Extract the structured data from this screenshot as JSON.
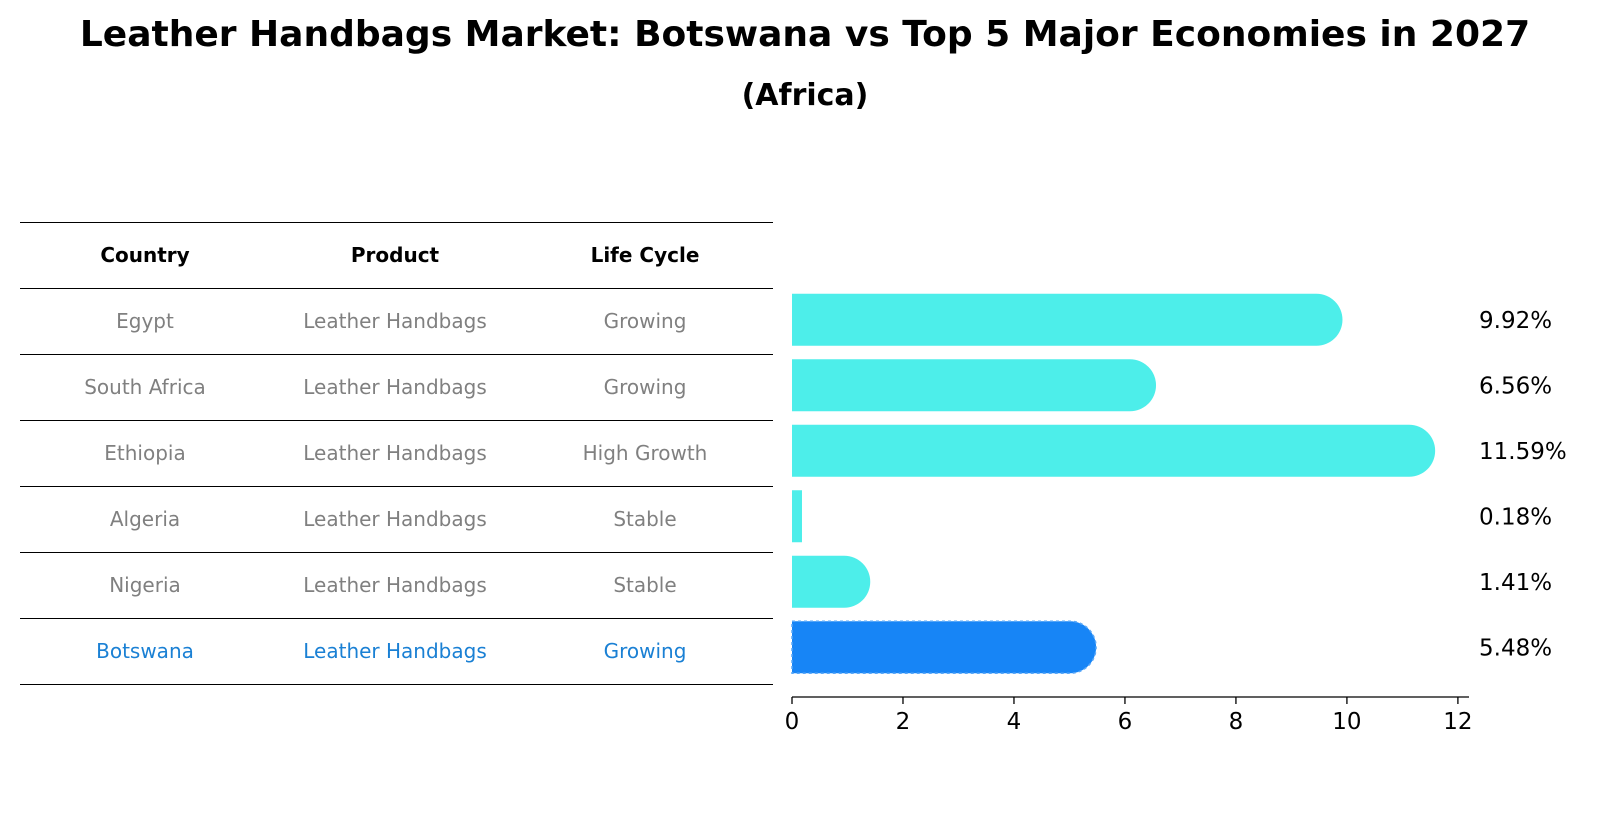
{
  "title": "Leather Handbags Market: Botswana vs Top 5 Major Economies in 2027",
  "subtitle": "(Africa)",
  "table": {
    "headers": [
      "Country",
      "Product",
      "Life Cycle"
    ],
    "rows": [
      {
        "country": "Egypt",
        "product": "Leather Handbags",
        "life_cycle": "Growing"
      },
      {
        "country": "South Africa",
        "product": "Leather Handbags",
        "life_cycle": "Growing"
      },
      {
        "country": "Ethiopia",
        "product": "Leather Handbags",
        "life_cycle": "High Growth"
      },
      {
        "country": "Algeria",
        "product": "Leather Handbags",
        "life_cycle": "Stable"
      },
      {
        "country": "Nigeria",
        "product": "Leather Handbags",
        "life_cycle": "Stable"
      },
      {
        "country": "Botswana",
        "product": "Leather Handbags",
        "life_cycle": "Growing"
      }
    ]
  },
  "colors": {
    "bar": "#4deeea",
    "highlight": "#1785f6",
    "highlight_text": "#1a80d4",
    "muted_text": "#808080"
  },
  "chart_data": {
    "type": "bar",
    "orientation": "horizontal",
    "title": "Leather Handbags Market: Botswana vs Top 5 Major Economies in 2027",
    "subtitle": "(Africa)",
    "categories": [
      "Egypt",
      "South Africa",
      "Ethiopia",
      "Algeria",
      "Nigeria",
      "Botswana"
    ],
    "values": [
      9.92,
      6.56,
      11.59,
      0.18,
      1.41,
      5.48
    ],
    "value_labels": [
      "9.92%",
      "6.56%",
      "11.59%",
      "0.18%",
      "1.41%",
      "5.48%"
    ],
    "highlight": "Botswana",
    "xlim": [
      0,
      12.2
    ],
    "xticks": [
      0,
      2,
      4,
      6,
      8,
      10,
      12
    ],
    "xlabel": "",
    "ylabel": "",
    "grid": false,
    "legend": "none"
  }
}
